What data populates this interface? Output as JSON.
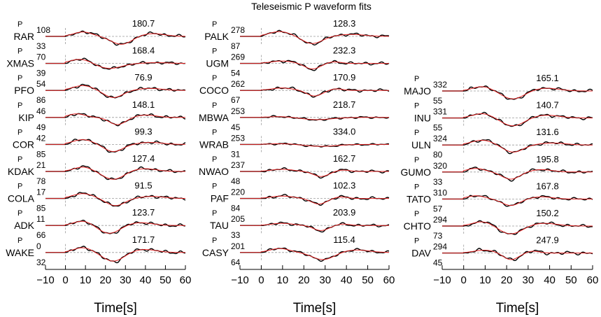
{
  "figure": {
    "title": "Teleseismic P waveform fits",
    "xlabel": "Time[s]"
  },
  "colors": {
    "observed": "#000000",
    "synthetic": "#e02020",
    "reference": "#9a9a9a"
  },
  "chart_data": [
    {
      "type": "line",
      "xlim": [
        -10,
        60
      ],
      "xticks": [
        -10,
        0,
        10,
        20,
        30,
        40,
        50,
        60
      ],
      "xtick_labels": [
        "−10",
        "0",
        "10",
        "20",
        "30",
        "40",
        "50",
        "60"
      ],
      "xlabel": "Time[s]",
      "series": [
        "observed",
        "synthetic"
      ],
      "stations": [
        {
          "name": "RAR",
          "phase": "P",
          "azimuth": "108",
          "distance": "33",
          "amplitude": "180.7",
          "profile": "a",
          "trough_time": 28,
          "scale": 1.0
        },
        {
          "name": "XMAS",
          "phase": "P",
          "azimuth": "70",
          "distance": "39",
          "amplitude": "168.4",
          "profile": "b",
          "trough_time": 22,
          "scale": 0.9
        },
        {
          "name": "PFO",
          "phase": "P",
          "azimuth": "54",
          "distance": "86",
          "amplitude": "76.9",
          "profile": "c",
          "trough_time": 24,
          "scale": 1.0
        },
        {
          "name": "KIP",
          "phase": "P",
          "azimuth": "46",
          "distance": "49",
          "amplitude": "148.1",
          "profile": "d",
          "trough_time": 26,
          "scale": 1.0
        },
        {
          "name": "COR",
          "phase": "P",
          "azimuth": "42",
          "distance": "85",
          "amplitude": "99.3",
          "profile": "c",
          "trough_time": 24,
          "scale": 1.0
        },
        {
          "name": "KDAK",
          "phase": "P",
          "azimuth": "21",
          "distance": "78",
          "amplitude": "127.4",
          "profile": "a",
          "trough_time": 24,
          "scale": 1.0
        },
        {
          "name": "COLA",
          "phase": "P",
          "azimuth": "17",
          "distance": "85",
          "amplitude": "91.5",
          "profile": "c",
          "trough_time": 25,
          "scale": 1.0
        },
        {
          "name": "ADK",
          "phase": "P",
          "azimuth": "11",
          "distance": "66",
          "amplitude": "123.7",
          "profile": "a",
          "trough_time": 22,
          "scale": 1.0
        },
        {
          "name": "WAKE",
          "phase": "P",
          "azimuth": "0",
          "distance": "32",
          "amplitude": "171.7",
          "profile": "a",
          "trough_time": 24,
          "scale": 1.1
        }
      ]
    },
    {
      "type": "line",
      "xlim": [
        -10,
        60
      ],
      "xticks": [
        -10,
        0,
        10,
        20,
        30,
        40,
        50,
        60
      ],
      "xtick_labels": [
        "−10",
        "0",
        "10",
        "20",
        "30",
        "40",
        "50",
        "60"
      ],
      "xlabel": "Time[s]",
      "series": [
        "observed",
        "synthetic"
      ],
      "stations": [
        {
          "name": "PALK",
          "phase": "P",
          "azimuth": "278",
          "distance": "87",
          "amplitude": "128.3",
          "profile": "c",
          "trough_time": 24,
          "scale": 1.0
        },
        {
          "name": "UGM",
          "phase": "P",
          "azimuth": "269",
          "distance": "54",
          "amplitude": "232.3",
          "profile": "e",
          "trough_time": 24,
          "scale": 1.0
        },
        {
          "name": "COCO",
          "phase": "P",
          "azimuth": "262",
          "distance": "67",
          "amplitude": "170.9",
          "profile": "e",
          "trough_time": 25,
          "scale": 1.0
        },
        {
          "name": "MBWA",
          "phase": "P",
          "azimuth": "253",
          "distance": "45",
          "amplitude": "218.7",
          "profile": "f",
          "trough_time": 26,
          "scale": 0.7
        },
        {
          "name": "WRAB",
          "phase": "P",
          "azimuth": "253",
          "distance": "31",
          "amplitude": "334.0",
          "profile": "f",
          "trough_time": 28,
          "scale": 0.6
        },
        {
          "name": "NWAO",
          "phase": "P",
          "azimuth": "237",
          "distance": "48",
          "amplitude": "162.7",
          "profile": "e",
          "trough_time": 28,
          "scale": 0.9
        },
        {
          "name": "PAF",
          "phase": "P",
          "azimuth": "220",
          "distance": "84",
          "amplitude": "102.3",
          "profile": "e",
          "trough_time": 27,
          "scale": 1.0
        },
        {
          "name": "TAU",
          "phase": "P",
          "azimuth": "205",
          "distance": "33",
          "amplitude": "203.9",
          "profile": "e",
          "trough_time": 28,
          "scale": 0.9
        },
        {
          "name": "CASY",
          "phase": "P",
          "azimuth": "201",
          "distance": "64",
          "amplitude": "115.4",
          "profile": "a",
          "trough_time": 29,
          "scale": 0.9
        }
      ]
    },
    {
      "type": "line",
      "xlim": [
        -10,
        60
      ],
      "xticks": [
        -10,
        0,
        10,
        20,
        30,
        40,
        50,
        60
      ],
      "xtick_labels": [
        "−10",
        "0",
        "10",
        "20",
        "30",
        "40",
        "50",
        "60"
      ],
      "xlabel": "Time[s]",
      "series": [
        "observed",
        "synthetic"
      ],
      "stations": [
        {
          "name": "MAJO",
          "phase": "P",
          "azimuth": "332",
          "distance": "55",
          "amplitude": "165.1",
          "profile": "a",
          "trough_time": 23,
          "scale": 1.0
        },
        {
          "name": "INU",
          "phase": "P",
          "azimuth": "331",
          "distance": "55",
          "amplitude": "140.7",
          "profile": "a",
          "trough_time": 23,
          "scale": 1.0
        },
        {
          "name": "ULN",
          "phase": "P",
          "azimuth": "324",
          "distance": "80",
          "amplitude": "131.6",
          "profile": "c",
          "trough_time": 23,
          "scale": 1.0
        },
        {
          "name": "GUMO",
          "phase": "P",
          "azimuth": "320",
          "distance": "33",
          "amplitude": "195.8",
          "profile": "d",
          "trough_time": 22,
          "scale": 1.0
        },
        {
          "name": "TATO",
          "phase": "P",
          "azimuth": "310",
          "distance": "57",
          "amplitude": "167.8",
          "profile": "d",
          "trough_time": 22,
          "scale": 0.9
        },
        {
          "name": "CHTO",
          "phase": "P",
          "azimuth": "294",
          "distance": "73",
          "amplitude": "150.2",
          "profile": "a",
          "trough_time": 22,
          "scale": 1.0
        },
        {
          "name": "DAV",
          "phase": "P",
          "azimuth": "294",
          "distance": "45",
          "amplitude": "247.9",
          "profile": "e",
          "trough_time": 22,
          "scale": 1.2
        }
      ]
    }
  ]
}
